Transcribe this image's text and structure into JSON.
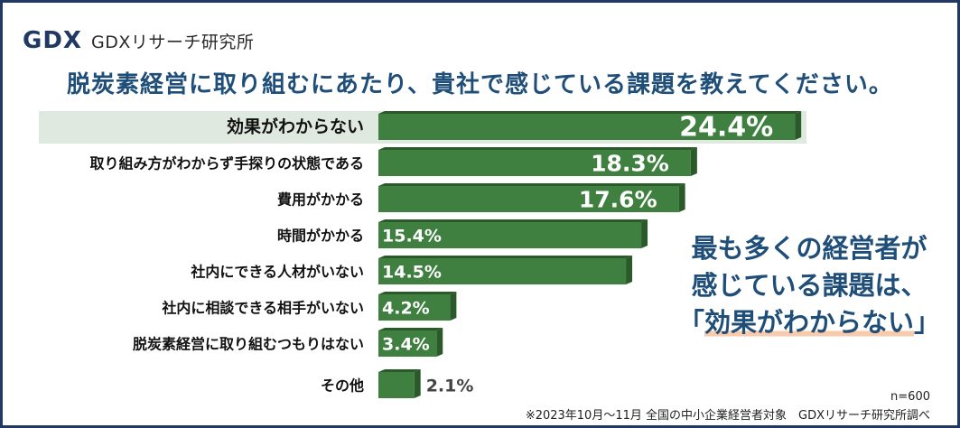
{
  "brand": {
    "name": "GDXリサーチ研究所",
    "logo_text": "GDX"
  },
  "title": "脱炭素経営に取り組むにあたり、貴社で感じている課題を教えてください。",
  "callout": {
    "line1": "最も多くの経営者が",
    "line2": "感じている課題は、",
    "open_bracket": "「",
    "highlight": "効果がわからない",
    "close_bracket": "」"
  },
  "footer": {
    "n": "n=600",
    "note": "※2023年10月～11月 全国の中小企業経営者対象　GDXリサーチ研究所調べ"
  },
  "colors": {
    "bar": "#3f7f3f",
    "bar_side": "#2a5a2a",
    "highlight_row": "#dfe9df",
    "title": "#1f4e79"
  },
  "chart_data": {
    "type": "bar",
    "orientation": "horizontal",
    "unit": "%",
    "highlighted_category": "効果がわからない",
    "categories": [
      "効果がわからない",
      "取り組み方がわからず手探りの状態である",
      "費用がかかる",
      "時間がかかる",
      "社内にできる人材がいない",
      "社内に相談できる相手がいない",
      "脱炭素経営に取り組むつもりはない",
      "その他"
    ],
    "values": [
      24.4,
      18.3,
      17.6,
      15.4,
      14.5,
      4.2,
      3.4,
      2.1
    ],
    "labels": [
      "24.4%",
      "18.3%",
      "17.6%",
      "15.4%",
      "14.5%",
      "4.2%",
      "3.4%",
      "2.1%"
    ]
  }
}
